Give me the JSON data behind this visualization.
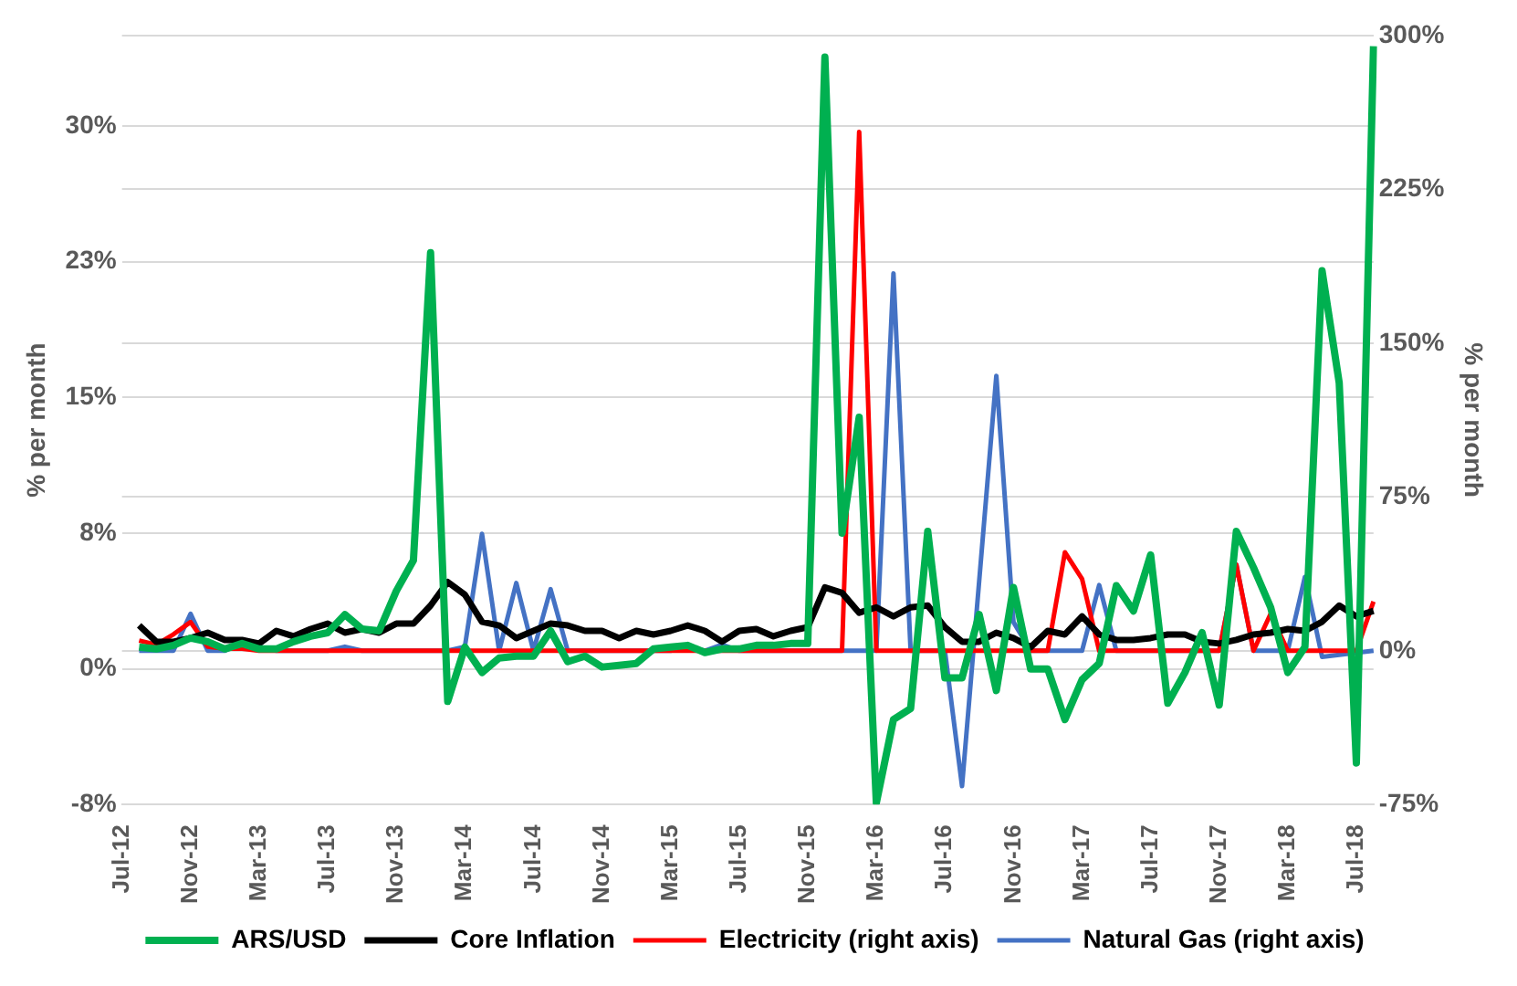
{
  "chart_data": {
    "type": "line",
    "ylabel": "% per month",
    "y2label": "% per month",
    "categories": [
      "Jul-12",
      null,
      null,
      null,
      "Nov-12",
      null,
      null,
      null,
      "Mar-13",
      null,
      null,
      null,
      "Jul-13",
      null,
      null,
      null,
      "Nov-13",
      null,
      null,
      null,
      "Mar-14",
      null,
      null,
      null,
      "Jul-14",
      null,
      null,
      null,
      "Nov-14",
      null,
      null,
      null,
      "Mar-15",
      null,
      null,
      null,
      "Jul-15",
      null,
      null,
      null,
      "Nov-15",
      null,
      null,
      null,
      "Mar-16",
      null,
      null,
      null,
      "Jul-16",
      null,
      null,
      null,
      "Nov-16",
      null,
      null,
      null,
      "Mar-17",
      null,
      null,
      null,
      "Jul-17",
      null,
      null,
      null,
      "Nov-17",
      null,
      null,
      null,
      "Mar-18",
      null,
      null,
      null,
      "Jul-18",
      null
    ],
    "series": [
      {
        "name": "ARS/USD",
        "color": "#00b050",
        "values": [
          null,
          1.2,
          1.1,
          1.3,
          1.7,
          1.5,
          1.1,
          1.4,
          1.1,
          1.1,
          1.5,
          1.8,
          2.0,
          3.0,
          2.2,
          2.1,
          4.3,
          6.0,
          23.0,
          -1.8,
          1.2,
          -0.2,
          0.6,
          0.7,
          0.7,
          2.1,
          0.4,
          0.7,
          0.1,
          0.2,
          0.3,
          1.1,
          1.2,
          1.3,
          0.9,
          1.1,
          1.1,
          1.3,
          1.3,
          1.4,
          1.4,
          33.8,
          7.5,
          13.9,
          -7.4,
          -2.8,
          -2.2,
          7.6,
          -0.5,
          -0.5,
          3.0,
          -1.2,
          4.5,
          0,
          0,
          -2.8,
          -0.6,
          0.3,
          4.6,
          3.2,
          6.3,
          -1.9,
          -0.2,
          2.0,
          -2.0,
          7.6,
          5.6,
          3.4,
          -0.2,
          1.2,
          22,
          15.8,
          -5.2,
          34.4
        ]
      },
      {
        "name": "Core Inflation",
        "color": "#000000",
        "values": [
          null,
          2.4,
          1.5,
          1.5,
          1.7,
          2.0,
          1.6,
          1.6,
          1.4,
          2.1,
          1.8,
          2.2,
          2.5,
          2.0,
          2.2,
          2.0,
          2.5,
          2.5,
          3.5,
          4.8,
          4.1,
          2.6,
          2.4,
          1.7,
          2.1,
          2.5,
          2.4,
          2.1,
          2.1,
          1.7,
          2.1,
          1.9,
          2.1,
          2.4,
          2.1,
          1.5,
          2.1,
          2.2,
          1.8,
          2.1,
          2.3,
          4.5,
          4.2,
          3.1,
          3.4,
          2.9,
          3.4,
          3.5,
          2.3,
          1.5,
          1.5,
          2.0,
          1.7,
          1.2,
          2.1,
          1.9,
          2.9,
          1.9,
          1.6,
          1.6,
          1.7,
          1.9,
          1.9,
          1.5,
          1.4,
          1.6,
          1.9,
          2.0,
          2.2,
          2.1,
          2.6,
          3.5,
          2.9,
          3.2
        ]
      },
      {
        "name": "Electricity (right axis)",
        "color": "#ff0000",
        "axis": "y2",
        "values": [
          null,
          5,
          3,
          8,
          14,
          2,
          1,
          1,
          0,
          0,
          0,
          0,
          0,
          0,
          0,
          0,
          0,
          0,
          0,
          0,
          0,
          0,
          0,
          0,
          0,
          0,
          0,
          0,
          0,
          0,
          0,
          0,
          0,
          0,
          0,
          0,
          0,
          0,
          0,
          0,
          0,
          0,
          0,
          253,
          0,
          0,
          0,
          0,
          0,
          0,
          0,
          0,
          0,
          0,
          0,
          48,
          35,
          0,
          0,
          0,
          0,
          0,
          0,
          0,
          0,
          42,
          0,
          18,
          0,
          0,
          0,
          0,
          0,
          24
        ]
      },
      {
        "name": "Natural Gas (right axis)",
        "color": "#4472c4",
        "axis": "y2",
        "values": [
          null,
          0,
          0,
          0,
          18,
          0,
          0,
          4,
          2,
          0,
          0,
          0,
          0,
          2,
          0,
          0,
          0,
          0,
          0,
          0,
          2,
          57,
          0,
          33,
          0,
          30,
          0,
          0,
          0,
          0,
          0,
          0,
          0,
          2,
          0,
          3,
          0,
          0,
          0,
          0,
          0,
          0,
          0,
          0,
          0,
          184,
          0,
          0,
          0,
          -66,
          34,
          134,
          14,
          0,
          0,
          0,
          0,
          32,
          0,
          0,
          0,
          0,
          0,
          0,
          0,
          42,
          0,
          0,
          0,
          36,
          -3,
          -2,
          -1,
          0
        ]
      }
    ],
    "ylim": [
      -7.5,
      35
    ],
    "yticks": [
      {
        "value": -7.5,
        "label": "-8%"
      },
      {
        "value": 0,
        "label": "0%"
      },
      {
        "value": 7.5,
        "label": "8%"
      },
      {
        "value": 15,
        "label": "15%"
      },
      {
        "value": 22.5,
        "label": "23%"
      },
      {
        "value": 30,
        "label": "30%"
      }
    ],
    "y2lim": [
      -75,
      300
    ],
    "y2ticks": [
      {
        "value": -75,
        "label": "-75%"
      },
      {
        "value": 0,
        "label": "0%"
      },
      {
        "value": 75,
        "label": "75%"
      },
      {
        "value": 150,
        "label": "150%"
      },
      {
        "value": 225,
        "label": "225%"
      },
      {
        "value": 300,
        "label": "300%"
      }
    ],
    "grid": "y",
    "legend": "bottom",
    "marker": "none",
    "line_style": "solid"
  }
}
